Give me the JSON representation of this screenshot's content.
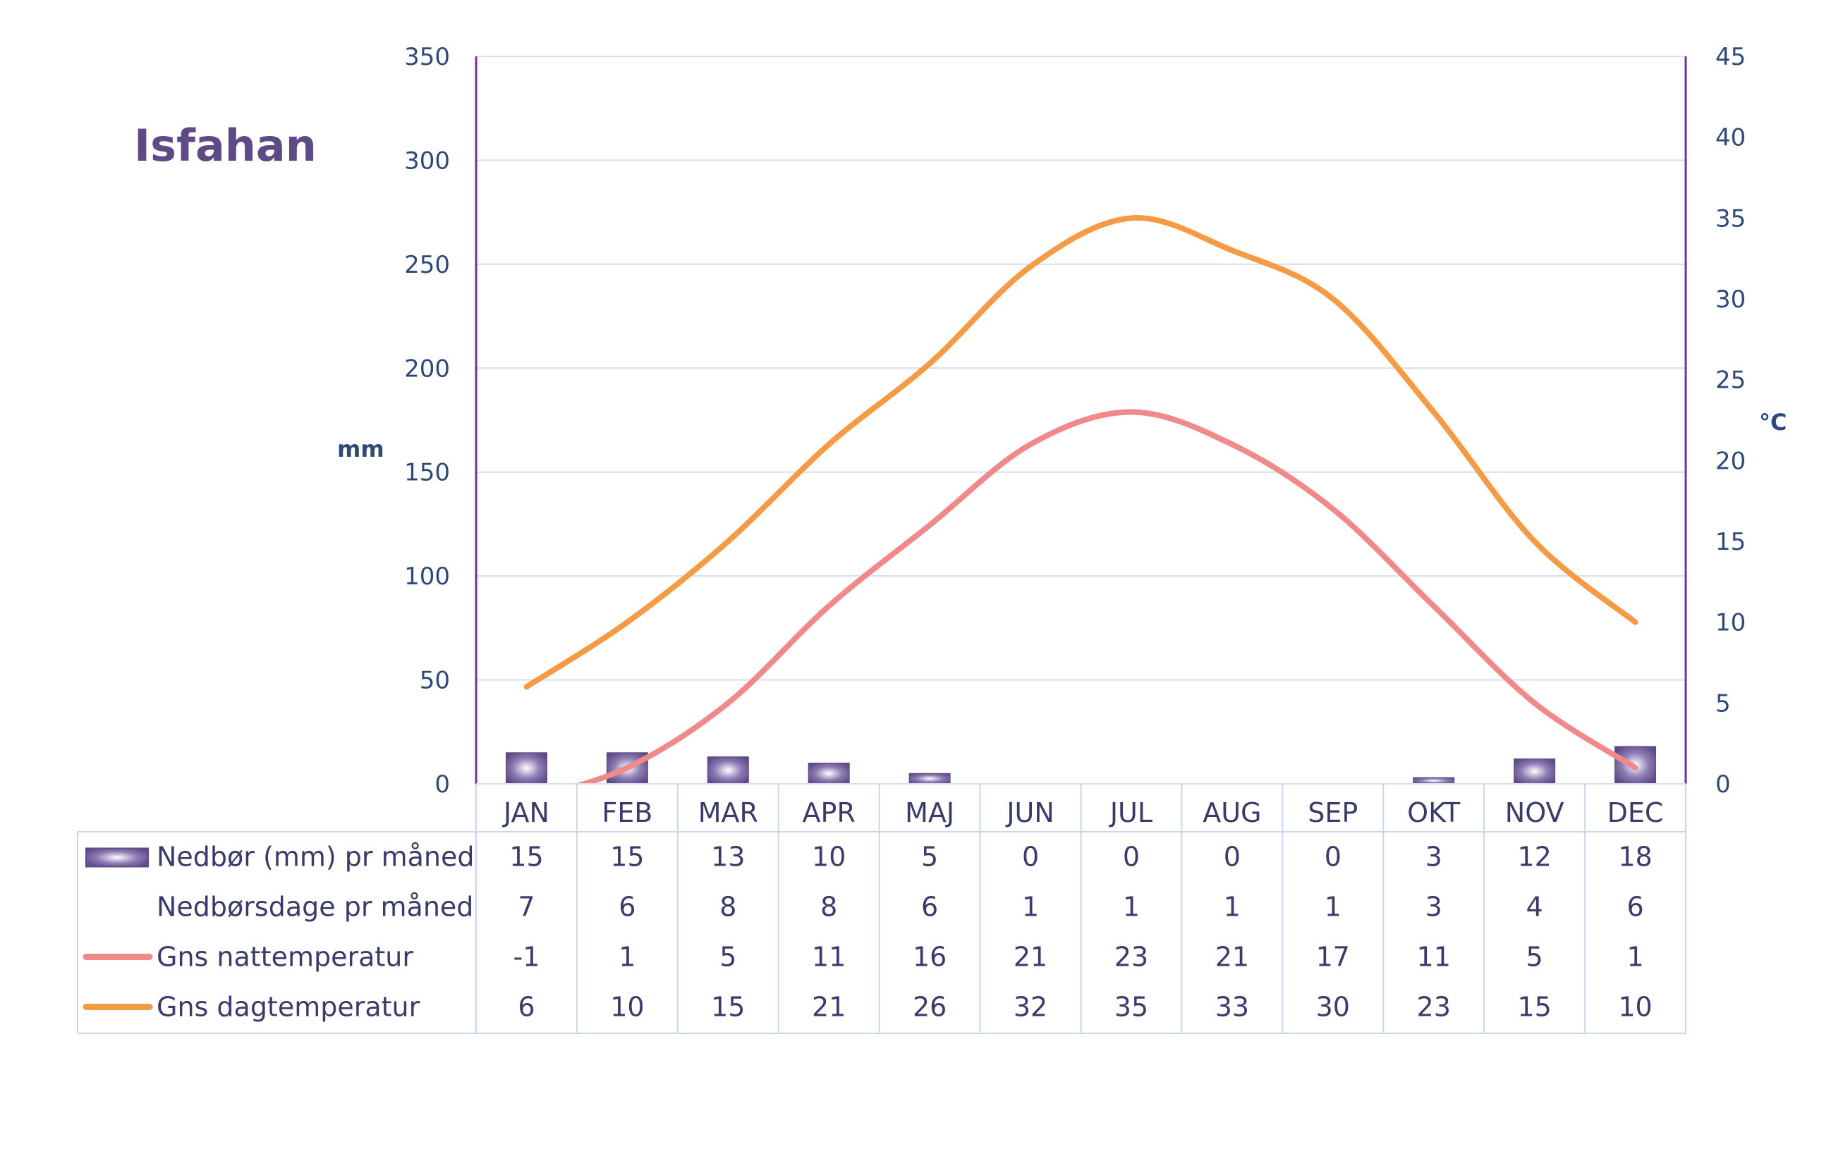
{
  "chart_data": {
    "type": "bar",
    "title": "Isfahan",
    "ylabel": "mm",
    "y2label": "°C",
    "ylim": [
      0,
      350
    ],
    "y2lim": [
      0,
      45
    ],
    "yticks": [
      0,
      50,
      100,
      150,
      200,
      250,
      300,
      350
    ],
    "y2ticks": [
      0,
      5,
      10,
      15,
      20,
      25,
      30,
      35,
      40,
      45
    ],
    "categories": [
      "JAN",
      "FEB",
      "MAR",
      "APR",
      "MAJ",
      "JUN",
      "JUL",
      "AUG",
      "SEP",
      "OKT",
      "NOV",
      "DEC"
    ],
    "grid": true,
    "series": [
      {
        "name": "Nedbør (mm) pr måned",
        "kind": "bar",
        "axis": "left",
        "color": "#5e4b86",
        "values": [
          15,
          15,
          13,
          10,
          5,
          0,
          0,
          0,
          0,
          3,
          12,
          18
        ]
      },
      {
        "name": "Nedbørsdage pr måned",
        "kind": "table",
        "values": [
          7,
          6,
          8,
          8,
          6,
          1,
          1,
          1,
          1,
          3,
          4,
          6
        ]
      },
      {
        "name": "Gns nattemperatur",
        "kind": "line",
        "axis": "right",
        "color": "#f08a8a",
        "values": [
          -1,
          1,
          5,
          11,
          16,
          21,
          23,
          21,
          17,
          11,
          5,
          1
        ]
      },
      {
        "name": "Gns dagtemperatur",
        "kind": "line",
        "axis": "right",
        "color": "#f59a45",
        "values": [
          6,
          10,
          15,
          21,
          26,
          32,
          35,
          33,
          30,
          23,
          15,
          10
        ]
      }
    ]
  },
  "colors": {
    "axis": "#7030a0",
    "grid": "#d6dff0",
    "tick_text": "#2f4a7a",
    "table_border": "#c8d6ec",
    "table_text": "#3b3b6b"
  }
}
